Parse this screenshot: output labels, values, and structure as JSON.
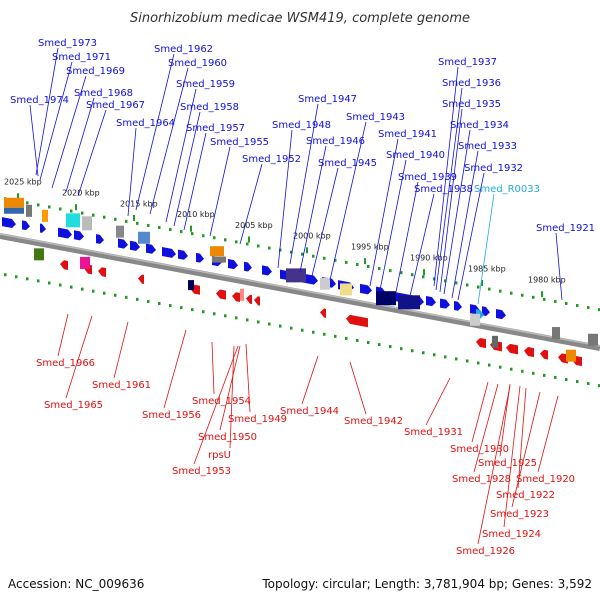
{
  "title": "Sinorhizobium medicae WSM419, complete genome",
  "footer": {
    "accession": "Accession: NC_009636",
    "summary": "Topology: circular; Length: 3,781,904 bp; Genes: 3,592"
  },
  "colors": {
    "forward": "#1010dd",
    "reverse": "#e01010",
    "rna": "#22aadd",
    "backbone": "#888888",
    "tick": "#229922"
  },
  "scale": [
    {
      "label": "2025 kbp"
    },
    {
      "label": "2020 kbp"
    },
    {
      "label": "2015 kbp"
    },
    {
      "label": "2010 kbp"
    },
    {
      "label": "2005 kbp"
    },
    {
      "label": "2000 kbp"
    },
    {
      "label": "1995 kbp"
    },
    {
      "label": "1990 kbp"
    },
    {
      "label": "1985 kbp"
    },
    {
      "label": "1980 kbp"
    }
  ],
  "forward_genes": [
    {
      "name": "Smed_1973"
    },
    {
      "name": "Smed_1971"
    },
    {
      "name": "Smed_1969"
    },
    {
      "name": "Smed_1968"
    },
    {
      "name": "Smed_1974"
    },
    {
      "name": "Smed_1967"
    },
    {
      "name": "Smed_1962"
    },
    {
      "name": "Smed_1960"
    },
    {
      "name": "Smed_1964"
    },
    {
      "name": "Smed_1959"
    },
    {
      "name": "Smed_1958"
    },
    {
      "name": "Smed_1957"
    },
    {
      "name": "Smed_1955"
    },
    {
      "name": "Smed_1952"
    },
    {
      "name": "Smed_1947"
    },
    {
      "name": "Smed_1948"
    },
    {
      "name": "Smed_1946"
    },
    {
      "name": "Smed_1945"
    },
    {
      "name": "Smed_1943"
    },
    {
      "name": "Smed_1941"
    },
    {
      "name": "Smed_1940"
    },
    {
      "name": "Smed_1939"
    },
    {
      "name": "Smed_1938"
    },
    {
      "name": "Smed_1937"
    },
    {
      "name": "Smed_1936"
    },
    {
      "name": "Smed_1935"
    },
    {
      "name": "Smed_1934"
    },
    {
      "name": "Smed_1933"
    },
    {
      "name": "Smed_1932"
    },
    {
      "name": "Smed_R0033"
    },
    {
      "name": "Smed_1921"
    }
  ],
  "reverse_genes": [
    {
      "name": "Smed_1966"
    },
    {
      "name": "Smed_1961"
    },
    {
      "name": "Smed_1965"
    },
    {
      "name": "Smed_1954"
    },
    {
      "name": "Smed_1956"
    },
    {
      "name": "Smed_1949"
    },
    {
      "name": "Smed_1950"
    },
    {
      "name": "rpsU"
    },
    {
      "name": "Smed_1953"
    },
    {
      "name": "Smed_1944"
    },
    {
      "name": "Smed_1942"
    },
    {
      "name": "Smed_1931"
    },
    {
      "name": "Smed_1930"
    },
    {
      "name": "Smed_1925"
    },
    {
      "name": "Smed_1928"
    },
    {
      "name": "Smed_1920"
    },
    {
      "name": "Smed_1922"
    },
    {
      "name": "Smed_1923"
    },
    {
      "name": "Smed_1924"
    },
    {
      "name": "Smed_1926"
    }
  ]
}
